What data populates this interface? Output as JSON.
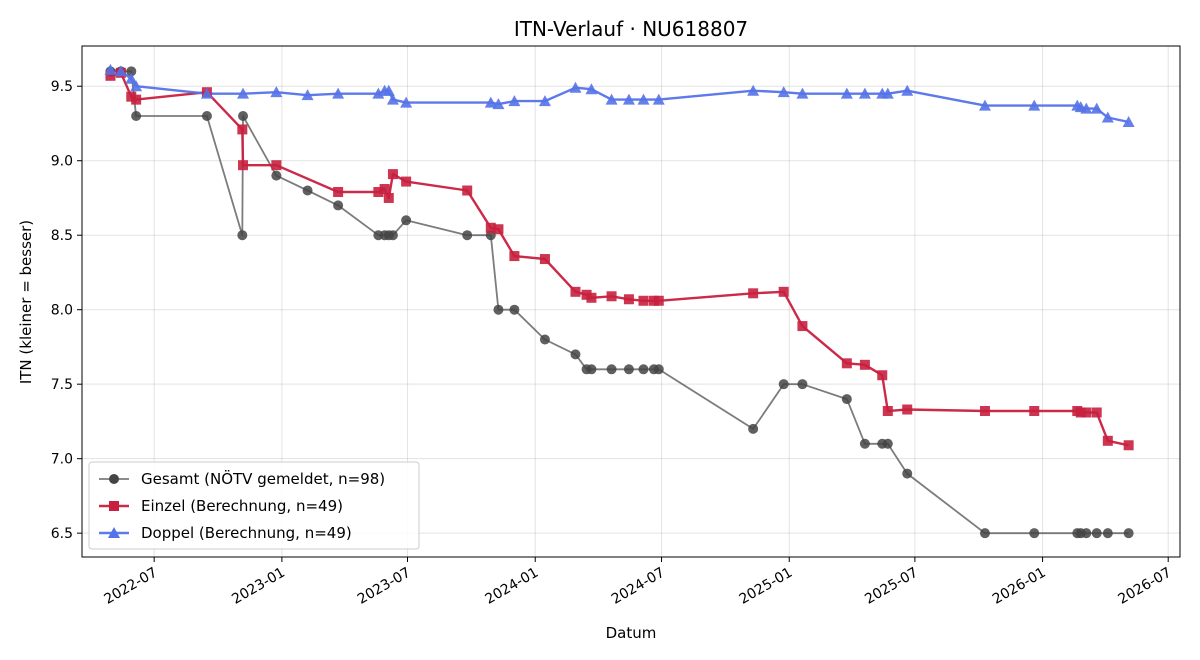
{
  "chart_data": {
    "type": "line",
    "title": "ITN-Verlauf · NU618807",
    "xlabel": "Datum",
    "ylabel": "ITN  (kleiner = besser)",
    "xlim": [
      "2022-03-19",
      "2026-07-18"
    ],
    "ylim": [
      6.34,
      9.77
    ],
    "grid": true,
    "legend_position": "lower-left",
    "x_ticks": [
      "2022-07-01",
      "2023-01-01",
      "2023-07-01",
      "2024-01-01",
      "2024-07-01",
      "2025-01-01",
      "2025-07-01",
      "2026-01-01",
      "2026-07-01"
    ],
    "x_tick_labels": [
      "2022-07",
      "2023-01",
      "2023-07",
      "2024-01",
      "2024-07",
      "2025-01",
      "2025-07",
      "2026-01",
      "2026-07"
    ],
    "y_ticks": [
      6.5,
      7.0,
      7.5,
      8.0,
      8.5,
      9.0,
      9.5
    ],
    "y_tick_labels": [
      "6.5",
      "7.0",
      "7.5",
      "8.0",
      "8.5",
      "9.0",
      "9.5"
    ],
    "series": [
      {
        "name": "Gesamt (NÖTV gemeldet, n=98)",
        "color": "#444444",
        "marker": "circle",
        "points": [
          [
            "2022-04-29",
            9.6
          ],
          [
            "2022-05-14",
            9.6
          ],
          [
            "2022-05-29",
            9.6
          ],
          [
            "2022-06-05",
            9.3
          ],
          [
            "2022-09-15",
            9.3
          ],
          [
            "2022-11-05",
            8.5
          ],
          [
            "2022-11-06",
            9.3
          ],
          [
            "2022-12-24",
            8.9
          ],
          [
            "2023-02-07",
            8.8
          ],
          [
            "2023-03-23",
            8.7
          ],
          [
            "2023-05-20",
            8.5
          ],
          [
            "2023-05-29",
            8.5
          ],
          [
            "2023-06-04",
            8.5
          ],
          [
            "2023-06-10",
            8.5
          ],
          [
            "2023-06-29",
            8.6
          ],
          [
            "2023-09-25",
            8.5
          ],
          [
            "2023-10-29",
            8.5
          ],
          [
            "2023-11-09",
            8.0
          ],
          [
            "2023-12-02",
            8.0
          ],
          [
            "2024-01-15",
            7.8
          ],
          [
            "2024-02-28",
            7.7
          ],
          [
            "2024-03-15",
            7.6
          ],
          [
            "2024-03-22",
            7.6
          ],
          [
            "2024-04-20",
            7.6
          ],
          [
            "2024-05-15",
            7.6
          ],
          [
            "2024-06-05",
            7.6
          ],
          [
            "2024-06-20",
            7.6
          ],
          [
            "2024-06-27",
            7.6
          ],
          [
            "2024-11-10",
            7.2
          ],
          [
            "2024-12-24",
            7.5
          ],
          [
            "2025-01-20",
            7.5
          ],
          [
            "2025-03-25",
            7.4
          ],
          [
            "2025-04-20",
            7.1
          ],
          [
            "2025-05-15",
            7.1
          ],
          [
            "2025-05-23",
            7.1
          ],
          [
            "2025-06-20",
            6.9
          ],
          [
            "2025-10-10",
            6.5
          ],
          [
            "2025-12-20",
            6.5
          ],
          [
            "2026-02-20",
            6.5
          ],
          [
            "2026-02-25",
            6.5
          ],
          [
            "2026-03-05",
            6.5
          ],
          [
            "2026-03-20",
            6.5
          ],
          [
            "2026-04-05",
            6.5
          ],
          [
            "2026-05-05",
            6.5
          ]
        ]
      },
      {
        "name": "Einzel (Berechnung, n=49)",
        "color": "#c8203e",
        "marker": "square",
        "points": [
          [
            "2022-04-29",
            9.57
          ],
          [
            "2022-05-14",
            9.59
          ],
          [
            "2022-05-29",
            9.43
          ],
          [
            "2022-06-05",
            9.41
          ],
          [
            "2022-09-15",
            9.46
          ],
          [
            "2022-11-05",
            9.21
          ],
          [
            "2022-11-06",
            8.97
          ],
          [
            "2022-12-24",
            8.97
          ],
          [
            "2023-03-23",
            8.79
          ],
          [
            "2023-05-20",
            8.79
          ],
          [
            "2023-05-29",
            8.81
          ],
          [
            "2023-06-04",
            8.75
          ],
          [
            "2023-06-10",
            8.91
          ],
          [
            "2023-06-29",
            8.86
          ],
          [
            "2023-09-25",
            8.8
          ],
          [
            "2023-10-29",
            8.55
          ],
          [
            "2023-11-09",
            8.54
          ],
          [
            "2023-12-02",
            8.36
          ],
          [
            "2024-01-15",
            8.34
          ],
          [
            "2024-02-28",
            8.12
          ],
          [
            "2024-03-15",
            8.1
          ],
          [
            "2024-03-22",
            8.08
          ],
          [
            "2024-04-20",
            8.09
          ],
          [
            "2024-05-15",
            8.07
          ],
          [
            "2024-06-05",
            8.06
          ],
          [
            "2024-06-20",
            8.06
          ],
          [
            "2024-06-27",
            8.06
          ],
          [
            "2024-11-10",
            8.11
          ],
          [
            "2024-12-24",
            8.12
          ],
          [
            "2025-01-20",
            7.89
          ],
          [
            "2025-03-25",
            7.64
          ],
          [
            "2025-04-20",
            7.63
          ],
          [
            "2025-05-15",
            7.56
          ],
          [
            "2025-05-23",
            7.32
          ],
          [
            "2025-06-20",
            7.33
          ],
          [
            "2025-10-10",
            7.32
          ],
          [
            "2025-12-20",
            7.32
          ],
          [
            "2026-02-20",
            7.32
          ],
          [
            "2026-02-25",
            7.31
          ],
          [
            "2026-03-05",
            7.31
          ],
          [
            "2026-03-20",
            7.31
          ],
          [
            "2026-04-05",
            7.12
          ],
          [
            "2026-05-05",
            7.09
          ]
        ]
      },
      {
        "name": "Doppel (Berechnung, n=49)",
        "color": "#5572e8",
        "marker": "triangle",
        "points": [
          [
            "2022-04-29",
            9.61
          ],
          [
            "2022-05-14",
            9.6
          ],
          [
            "2022-05-29",
            9.55
          ],
          [
            "2022-06-05",
            9.5
          ],
          [
            "2022-09-15",
            9.45
          ],
          [
            "2022-11-06",
            9.45
          ],
          [
            "2022-12-24",
            9.46
          ],
          [
            "2023-02-07",
            9.44
          ],
          [
            "2023-03-23",
            9.45
          ],
          [
            "2023-05-20",
            9.45
          ],
          [
            "2023-05-29",
            9.47
          ],
          [
            "2023-06-04",
            9.47
          ],
          [
            "2023-06-10",
            9.41
          ],
          [
            "2023-06-29",
            9.39
          ],
          [
            "2023-10-29",
            9.39
          ],
          [
            "2023-11-09",
            9.38
          ],
          [
            "2023-12-02",
            9.4
          ],
          [
            "2024-01-15",
            9.4
          ],
          [
            "2024-02-28",
            9.49
          ],
          [
            "2024-03-22",
            9.48
          ],
          [
            "2024-04-20",
            9.41
          ],
          [
            "2024-05-15",
            9.41
          ],
          [
            "2024-06-05",
            9.41
          ],
          [
            "2024-06-27",
            9.41
          ],
          [
            "2024-11-10",
            9.47
          ],
          [
            "2024-12-24",
            9.46
          ],
          [
            "2025-01-20",
            9.45
          ],
          [
            "2025-03-25",
            9.45
          ],
          [
            "2025-04-20",
            9.45
          ],
          [
            "2025-05-15",
            9.45
          ],
          [
            "2025-05-23",
            9.45
          ],
          [
            "2025-06-20",
            9.47
          ],
          [
            "2025-10-10",
            9.37
          ],
          [
            "2025-12-20",
            9.37
          ],
          [
            "2026-02-20",
            9.37
          ],
          [
            "2026-02-25",
            9.36
          ],
          [
            "2026-03-05",
            9.35
          ],
          [
            "2026-03-20",
            9.35
          ],
          [
            "2026-04-05",
            9.29
          ],
          [
            "2026-05-05",
            9.26
          ]
        ]
      }
    ]
  }
}
